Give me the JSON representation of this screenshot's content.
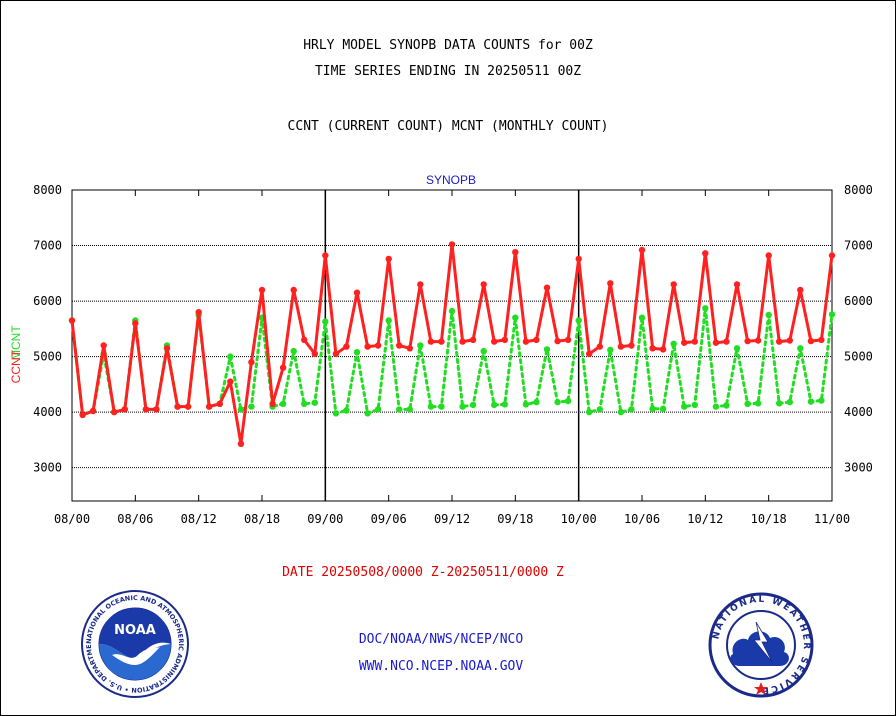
{
  "header": {
    "title_line1": "HRLY MODEL SYNOPB DATA COUNTS for 00Z",
    "title_line2": "TIME SERIES ENDING IN 20250511 00Z",
    "title_line3": "CCNT (CURRENT COUNT) MCNT (MONTHLY COUNT)"
  },
  "footer": {
    "date_range": "DATE 20250508/0000 Z-20250511/0000 Z",
    "credit_line1": "DOC/NOAA/NWS/NCEP/NCO",
    "credit_line2": "WWW.NCO.NCEP.NOAA.GOV"
  },
  "logos": {
    "noaa": {
      "center_text": "NOAA",
      "ring_text": "NATIONAL OCEANIC AND ATMOSPHERIC ADMINISTRATION • U.S. DEPARTMENT OF COMMERCE •"
    },
    "nws": {
      "ring_text": "NATIONAL WEATHER SERVICE"
    }
  },
  "chart_data": {
    "type": "line",
    "title": "SYNOPB",
    "ylabel_ccnt": "CCNT",
    "ylabel_mcnt": "MCNT",
    "ylim": [
      2400,
      8000
    ],
    "yticks": [
      3000,
      4000,
      5000,
      6000,
      7000,
      8000
    ],
    "xlim": [
      0,
      72
    ],
    "xticks": [
      {
        "pos": 0,
        "label": "08/00"
      },
      {
        "pos": 6,
        "label": "08/06"
      },
      {
        "pos": 12,
        "label": "08/12"
      },
      {
        "pos": 18,
        "label": "08/18"
      },
      {
        "pos": 24,
        "label": "09/00"
      },
      {
        "pos": 30,
        "label": "09/06"
      },
      {
        "pos": 36,
        "label": "09/12"
      },
      {
        "pos": 42,
        "label": "09/18"
      },
      {
        "pos": 48,
        "label": "10/00"
      },
      {
        "pos": 54,
        "label": "10/06"
      },
      {
        "pos": 60,
        "label": "10/12"
      },
      {
        "pos": 66,
        "label": "10/18"
      },
      {
        "pos": 72,
        "label": "11/00"
      }
    ],
    "day_boundaries": [
      24,
      48
    ],
    "grid": true,
    "colors": {
      "ccnt": "#ff2020",
      "mcnt": "#22dd22",
      "title": "#1a1acc",
      "day_line": "#000000"
    },
    "series": [
      {
        "name": "CCNT",
        "x": [
          0,
          1,
          2,
          3,
          4,
          5,
          6,
          7,
          8,
          9,
          10,
          11,
          12,
          13,
          14,
          15,
          16,
          17,
          18,
          19,
          20,
          21,
          22,
          23,
          24,
          25,
          26,
          27,
          28,
          29,
          30,
          31,
          32,
          33,
          34,
          35,
          36,
          37,
          38,
          39,
          40,
          41,
          42,
          43,
          44,
          45,
          46,
          47,
          48,
          49,
          50,
          51,
          52,
          53,
          54,
          55,
          56,
          57,
          58,
          59,
          60,
          61,
          62,
          63,
          64,
          65,
          66,
          67,
          68,
          69,
          70,
          71,
          72
        ],
        "values": [
          5650,
          3950,
          4020,
          5200,
          4000,
          4050,
          5600,
          4050,
          4050,
          5150,
          4100,
          4100,
          5800,
          4100,
          4150,
          4550,
          3430,
          4900,
          6200,
          4150,
          4800,
          6200,
          5300,
          5050,
          6820,
          5050,
          5180,
          6150,
          5180,
          5200,
          6760,
          5200,
          5150,
          6300,
          5270,
          5270,
          7020,
          5270,
          5300,
          6300,
          5270,
          5300,
          6880,
          5270,
          5300,
          6240,
          5280,
          5300,
          6760,
          5050,
          5180,
          6320,
          5180,
          5200,
          6920,
          5150,
          5130,
          6300,
          5250,
          5270,
          6860,
          5250,
          5270,
          6300,
          5280,
          5290,
          6820,
          5270,
          5290,
          6200,
          5280,
          5300,
          6820
        ]
      },
      {
        "name": "MCNT",
        "x": [
          0,
          1,
          2,
          3,
          4,
          5,
          6,
          7,
          8,
          9,
          10,
          11,
          12,
          13,
          14,
          15,
          16,
          17,
          18,
          19,
          20,
          21,
          22,
          23,
          24,
          25,
          26,
          27,
          28,
          29,
          30,
          31,
          32,
          33,
          34,
          35,
          36,
          37,
          38,
          39,
          40,
          41,
          42,
          43,
          44,
          45,
          46,
          47,
          48,
          49,
          50,
          51,
          52,
          53,
          54,
          55,
          56,
          57,
          58,
          59,
          60,
          61,
          62,
          63,
          64,
          65,
          66,
          67,
          68,
          69,
          70,
          71,
          72
        ],
        "values": [
          5650,
          3950,
          4020,
          5050,
          4000,
          4050,
          5650,
          4050,
          4050,
          5200,
          4100,
          4100,
          5750,
          4100,
          4150,
          5000,
          4050,
          4100,
          5700,
          4100,
          4150,
          5100,
          4150,
          4170,
          5630,
          3980,
          4030,
          5080,
          3980,
          4050,
          5650,
          4050,
          4050,
          5200,
          4100,
          4100,
          5820,
          4100,
          4130,
          5100,
          4130,
          4140,
          5700,
          4140,
          4180,
          5130,
          4180,
          4200,
          5650,
          4000,
          4050,
          5120,
          4000,
          4050,
          5700,
          4060,
          4060,
          5230,
          4100,
          4130,
          5870,
          4100,
          4120,
          5150,
          4150,
          4160,
          5750,
          4160,
          4180,
          5150,
          4190,
          4210,
          5760
        ]
      }
    ]
  }
}
